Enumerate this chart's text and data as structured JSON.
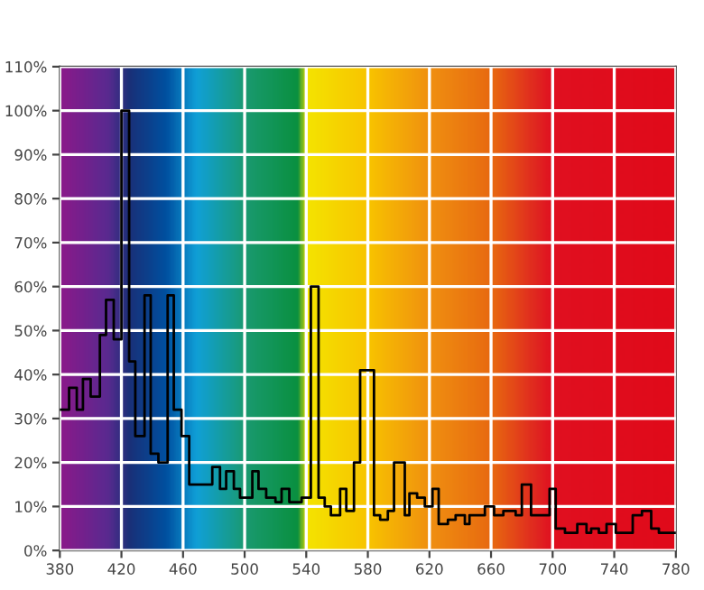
{
  "chart_data": {
    "type": "step",
    "x": [
      380,
      386,
      391,
      395,
      400,
      406,
      410,
      415,
      420,
      425,
      429,
      435,
      439,
      444,
      450,
      454,
      459,
      464,
      474,
      479,
      484,
      488,
      493,
      497,
      505,
      509,
      514,
      520,
      524,
      529,
      537,
      543,
      548,
      552,
      556,
      562,
      566,
      571,
      575,
      584,
      588,
      593,
      597,
      604,
      607,
      612,
      617,
      622,
      626,
      632,
      637,
      643,
      646,
      656,
      662,
      668,
      676,
      680,
      686,
      693,
      698,
      702,
      708,
      716,
      722,
      725,
      730,
      735,
      741,
      752,
      758,
      764,
      769,
      780
    ],
    "series": [
      {
        "color": "#000000",
        "values": [
          32,
          37,
          32,
          39,
          35,
          49,
          57,
          48,
          100,
          43,
          26,
          58,
          22,
          20,
          58,
          32,
          26,
          15,
          15,
          19,
          14,
          18,
          14,
          12,
          18,
          14,
          12,
          11,
          14,
          11,
          12,
          60,
          12,
          10,
          8,
          14,
          9,
          20,
          41,
          8,
          7,
          9,
          20,
          8,
          13,
          12,
          10,
          14,
          6,
          7,
          8,
          6,
          8,
          10,
          8,
          9,
          8,
          15,
          8,
          8,
          14,
          5,
          4,
          6,
          4,
          5,
          4,
          6,
          4,
          8,
          9,
          5,
          4,
          4
        ]
      }
    ],
    "xlim": [
      380,
      780
    ],
    "xticks": [
      380,
      420,
      460,
      500,
      540,
      580,
      620,
      660,
      700,
      740,
      780
    ],
    "ylim": [
      0,
      110
    ],
    "yticks": [
      {
        "value": 0,
        "label": "0%"
      },
      {
        "value": 10,
        "label": "10%"
      },
      {
        "value": 20,
        "label": "20%"
      },
      {
        "value": 30,
        "label": "30%"
      },
      {
        "value": 40,
        "label": "40%"
      },
      {
        "value": 50,
        "label": "50%"
      },
      {
        "value": 60,
        "label": "60%"
      },
      {
        "value": 70,
        "label": "70%"
      },
      {
        "value": 80,
        "label": "80%"
      },
      {
        "value": 90,
        "label": "90%"
      },
      {
        "value": 100,
        "label": "100%"
      },
      {
        "value": 110,
        "label": "110%"
      }
    ],
    "grid": true
  }
}
